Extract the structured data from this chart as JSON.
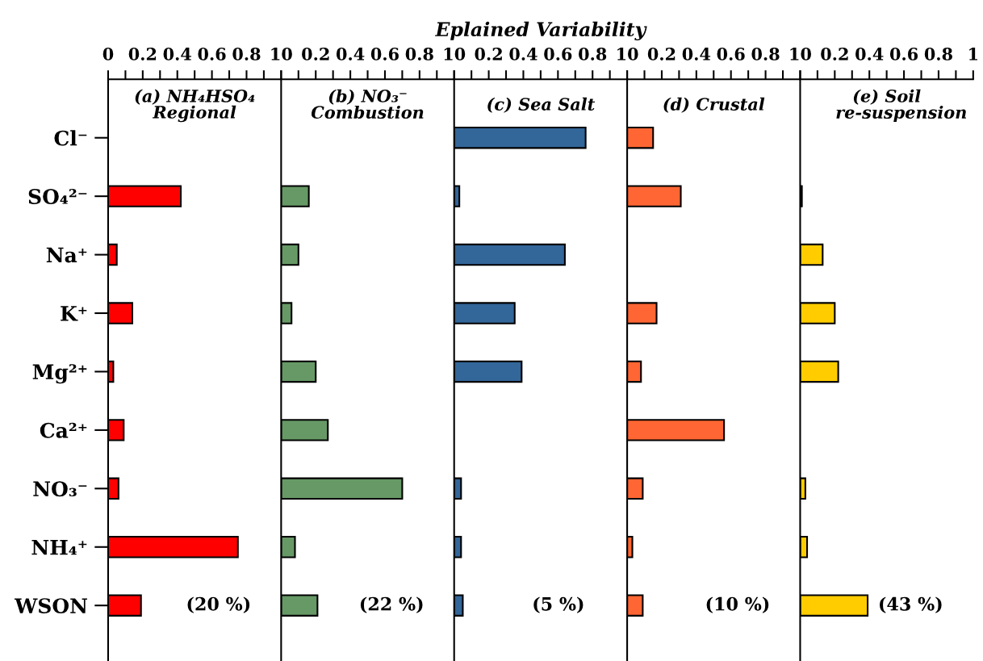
{
  "chart_data": [
    {
      "type": "bar",
      "orientation": "horizontal",
      "title": "(a) NH₄HSO₄\nRegional",
      "categories": [
        "Cl⁻",
        "SO₄²⁻",
        "Na⁺",
        "K⁺",
        "Mg²⁺",
        "Ca²⁺",
        "NO₃⁻",
        "NH₄⁺",
        "WSON"
      ],
      "values": [
        0,
        0.42,
        0.05,
        0.14,
        0.03,
        0.09,
        0.06,
        0.75,
        0.19
      ],
      "color": "#ff0000",
      "xlim": [
        0,
        1
      ],
      "xticks": [
        0,
        {
          "value": 0.1,
          "label": null
        },
        0.2,
        {
          "value": 0.3,
          "label": null
        },
        0.4,
        {
          "value": 0.5,
          "label": null
        },
        0.6,
        {
          "value": 0.7,
          "label": null
        },
        0.8,
        {
          "value": 0.9,
          "label": null
        },
        1
      ],
      "annotations": [
        "(20 %)"
      ]
    },
    {
      "type": "bar",
      "orientation": "horizontal",
      "title": "(b) NO₃⁻\nCombustion",
      "categories": [
        null,
        null,
        null,
        null,
        null,
        null,
        null,
        null,
        null
      ],
      "values": [
        0,
        0.16,
        0.1,
        0.06,
        0.2,
        0.27,
        0.7,
        0.08,
        0.21
      ],
      "color": "#669966",
      "xlim": [
        0,
        1
      ],
      "xticks": [
        0,
        {
          "value": 0.1,
          "label": null
        },
        0.2,
        {
          "value": 0.3,
          "label": null
        },
        0.4,
        {
          "value": 0.5,
          "label": null
        },
        0.6,
        {
          "value": 0.7,
          "label": null
        },
        0.8,
        {
          "value": 0.9,
          "label": null
        },
        1
      ],
      "tick_labels": "x",
      "annotations": [
        "(22 %)"
      ]
    },
    {
      "type": "bar",
      "orientation": "horizontal",
      "title": "(c) Sea Salt",
      "xlabel": "Eplained Variability",
      "categories": [
        null,
        null,
        null,
        null,
        null,
        null,
        null,
        null,
        null
      ],
      "values": [
        0.76,
        0.03,
        0.64,
        0.35,
        0.39,
        0,
        0.04,
        0.04,
        0.05
      ],
      "color": "#336699",
      "xlim": [
        0,
        1
      ],
      "xticks": [
        0,
        {
          "value": 0.1,
          "label": null
        },
        0.2,
        {
          "value": 0.3,
          "label": null
        },
        0.4,
        {
          "value": 0.5,
          "label": null
        },
        0.6,
        {
          "value": 0.7,
          "label": null
        },
        0.8,
        {
          "value": 0.9,
          "label": null
        },
        1
      ],
      "tick_labels": "x",
      "annotations": [
        "(5 %)"
      ]
    },
    {
      "type": "bar",
      "orientation": "horizontal",
      "title": "(d) Crustal",
      "categories": [
        null,
        null,
        null,
        null,
        null,
        null,
        null,
        null,
        null
      ],
      "values": [
        0.15,
        0.31,
        0,
        0.17,
        0.08,
        0.56,
        0.09,
        0.03,
        0.09
      ],
      "color": "#ff6633",
      "xlim": [
        0,
        1
      ],
      "xticks": [
        0,
        {
          "value": 0.1,
          "label": null
        },
        0.2,
        {
          "value": 0.3,
          "label": null
        },
        0.4,
        {
          "value": 0.5,
          "label": null
        },
        0.6,
        {
          "value": 0.7,
          "label": null
        },
        0.8,
        {
          "value": 0.9,
          "label": null
        },
        1
      ],
      "tick_labels": "x",
      "annotations": [
        "(10 %)"
      ]
    },
    {
      "type": "bar",
      "orientation": "horizontal",
      "title": "(e) Soil\n     re-suspension",
      "categories": [
        null,
        null,
        null,
        null,
        null,
        null,
        null,
        null,
        null
      ],
      "values": [
        0,
        0.01,
        0.13,
        0.2,
        0.22,
        0,
        0.03,
        0.04,
        0.39
      ],
      "color": "#ffcc00",
      "xlim": [
        0,
        1
      ],
      "xticks": [
        0,
        {
          "value": 0.1,
          "label": null
        },
        0.2,
        {
          "value": 0.3,
          "label": null
        },
        0.4,
        {
          "value": 0.5,
          "label": null
        },
        0.6,
        {
          "value": 0.7,
          "label": null
        },
        0.8,
        {
          "value": 0.9,
          "label": null
        },
        1
      ],
      "tick_labels": "x",
      "annotations": [
        "(43 %)"
      ]
    }
  ]
}
